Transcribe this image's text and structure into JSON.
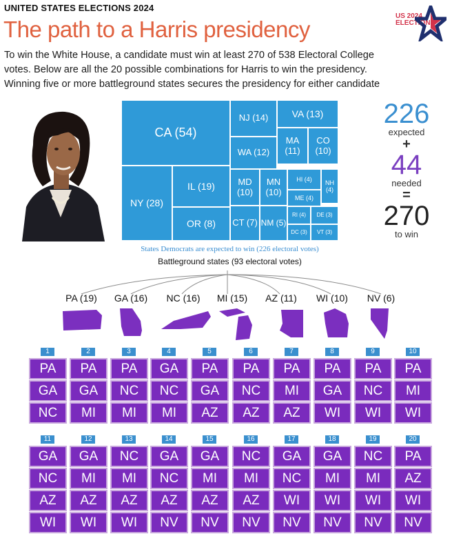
{
  "header": {
    "kicker": "UNITED STATES ELECTIONS 2024",
    "title": "The path to a Harris presidency",
    "logo_line1": "US 2024",
    "logo_line2": "ELECTIONS"
  },
  "intro": [
    "To win the White House, a candidate must win at least 270 of 538 Electoral College",
    "votes. Below are all the 20 possible combinations for Harris to win the presidency.",
    "Winning five or more battleground states secures the presidency for either candidate"
  ],
  "photo": {
    "alt": "Kamala Harris portrait"
  },
  "chart_data": [
    {
      "type": "treemap",
      "title": "States Democrats are expected to win (226 electoral votes)",
      "labels": [
        "CA (54)",
        "NY (28)",
        "IL (19)",
        "NJ (14)",
        "VA (13)",
        "WA (12)",
        "MA (11)",
        "CO (10)",
        "MD (10)",
        "MN (10)",
        "OR (8)",
        "CT (7)",
        "NM (5)",
        "HI (4)",
        "NH (4)",
        "ME (4)",
        "RI (4)",
        "DE (3)",
        "DC (3)",
        "VT (3)"
      ],
      "values": [
        54,
        28,
        19,
        14,
        13,
        12,
        11,
        10,
        10,
        10,
        8,
        7,
        5,
        4,
        4,
        4,
        4,
        3,
        3,
        3
      ],
      "total": 226
    },
    {
      "type": "table",
      "title": "Battleground states (93 electoral votes)",
      "battleground_states": [
        {
          "label": "PA (19)",
          "votes": 19
        },
        {
          "label": "GA (16)",
          "votes": 16
        },
        {
          "label": "NC (16)",
          "votes": 16
        },
        {
          "label": "MI (15)",
          "votes": 15
        },
        {
          "label": "AZ (11)",
          "votes": 11
        },
        {
          "label": "WI (10)",
          "votes": 10
        },
        {
          "label": "NV (6)",
          "votes": 6
        }
      ],
      "combinations": [
        {
          "n": "1",
          "states": [
            "PA",
            "GA",
            "NC"
          ]
        },
        {
          "n": "2",
          "states": [
            "PA",
            "GA",
            "MI"
          ]
        },
        {
          "n": "3",
          "states": [
            "PA",
            "NC",
            "MI"
          ]
        },
        {
          "n": "4",
          "states": [
            "GA",
            "NC",
            "MI"
          ]
        },
        {
          "n": "5",
          "states": [
            "PA",
            "GA",
            "AZ"
          ]
        },
        {
          "n": "6",
          "states": [
            "PA",
            "NC",
            "AZ"
          ]
        },
        {
          "n": "7",
          "states": [
            "PA",
            "MI",
            "AZ"
          ]
        },
        {
          "n": "8",
          "states": [
            "PA",
            "GA",
            "WI"
          ]
        },
        {
          "n": "9",
          "states": [
            "PA",
            "NC",
            "WI"
          ]
        },
        {
          "n": "10",
          "states": [
            "PA",
            "MI",
            "WI"
          ]
        },
        {
          "n": "11",
          "states": [
            "GA",
            "NC",
            "AZ",
            "WI"
          ]
        },
        {
          "n": "12",
          "states": [
            "GA",
            "MI",
            "AZ",
            "WI"
          ]
        },
        {
          "n": "13",
          "states": [
            "NC",
            "MI",
            "AZ",
            "WI"
          ]
        },
        {
          "n": "14",
          "states": [
            "GA",
            "NC",
            "AZ",
            "NV"
          ]
        },
        {
          "n": "15",
          "states": [
            "GA",
            "MI",
            "AZ",
            "NV"
          ]
        },
        {
          "n": "16",
          "states": [
            "NC",
            "MI",
            "AZ",
            "NV"
          ]
        },
        {
          "n": "17",
          "states": [
            "GA",
            "NC",
            "WI",
            "NV"
          ]
        },
        {
          "n": "18",
          "states": [
            "GA",
            "MI",
            "WI",
            "NV"
          ]
        },
        {
          "n": "19",
          "states": [
            "NC",
            "MI",
            "WI",
            "NV"
          ]
        },
        {
          "n": "20",
          "states": [
            "PA",
            "AZ",
            "WI",
            "NV"
          ]
        }
      ]
    }
  ],
  "tally": {
    "expected_value": "226",
    "expected_label": "expected",
    "plus": "+",
    "needed_value": "44",
    "needed_label": "needed",
    "equals": "=",
    "win_value": "270",
    "win_label": "to win"
  },
  "colors": {
    "title": "#e0613f",
    "treemap_blue": "#2f9ad8",
    "combo_purple": "#7a2bbd",
    "shape_purple": "#7b2fbf",
    "needed_purple": "#7a3fc0",
    "badge_blue": "#3a8fce"
  }
}
